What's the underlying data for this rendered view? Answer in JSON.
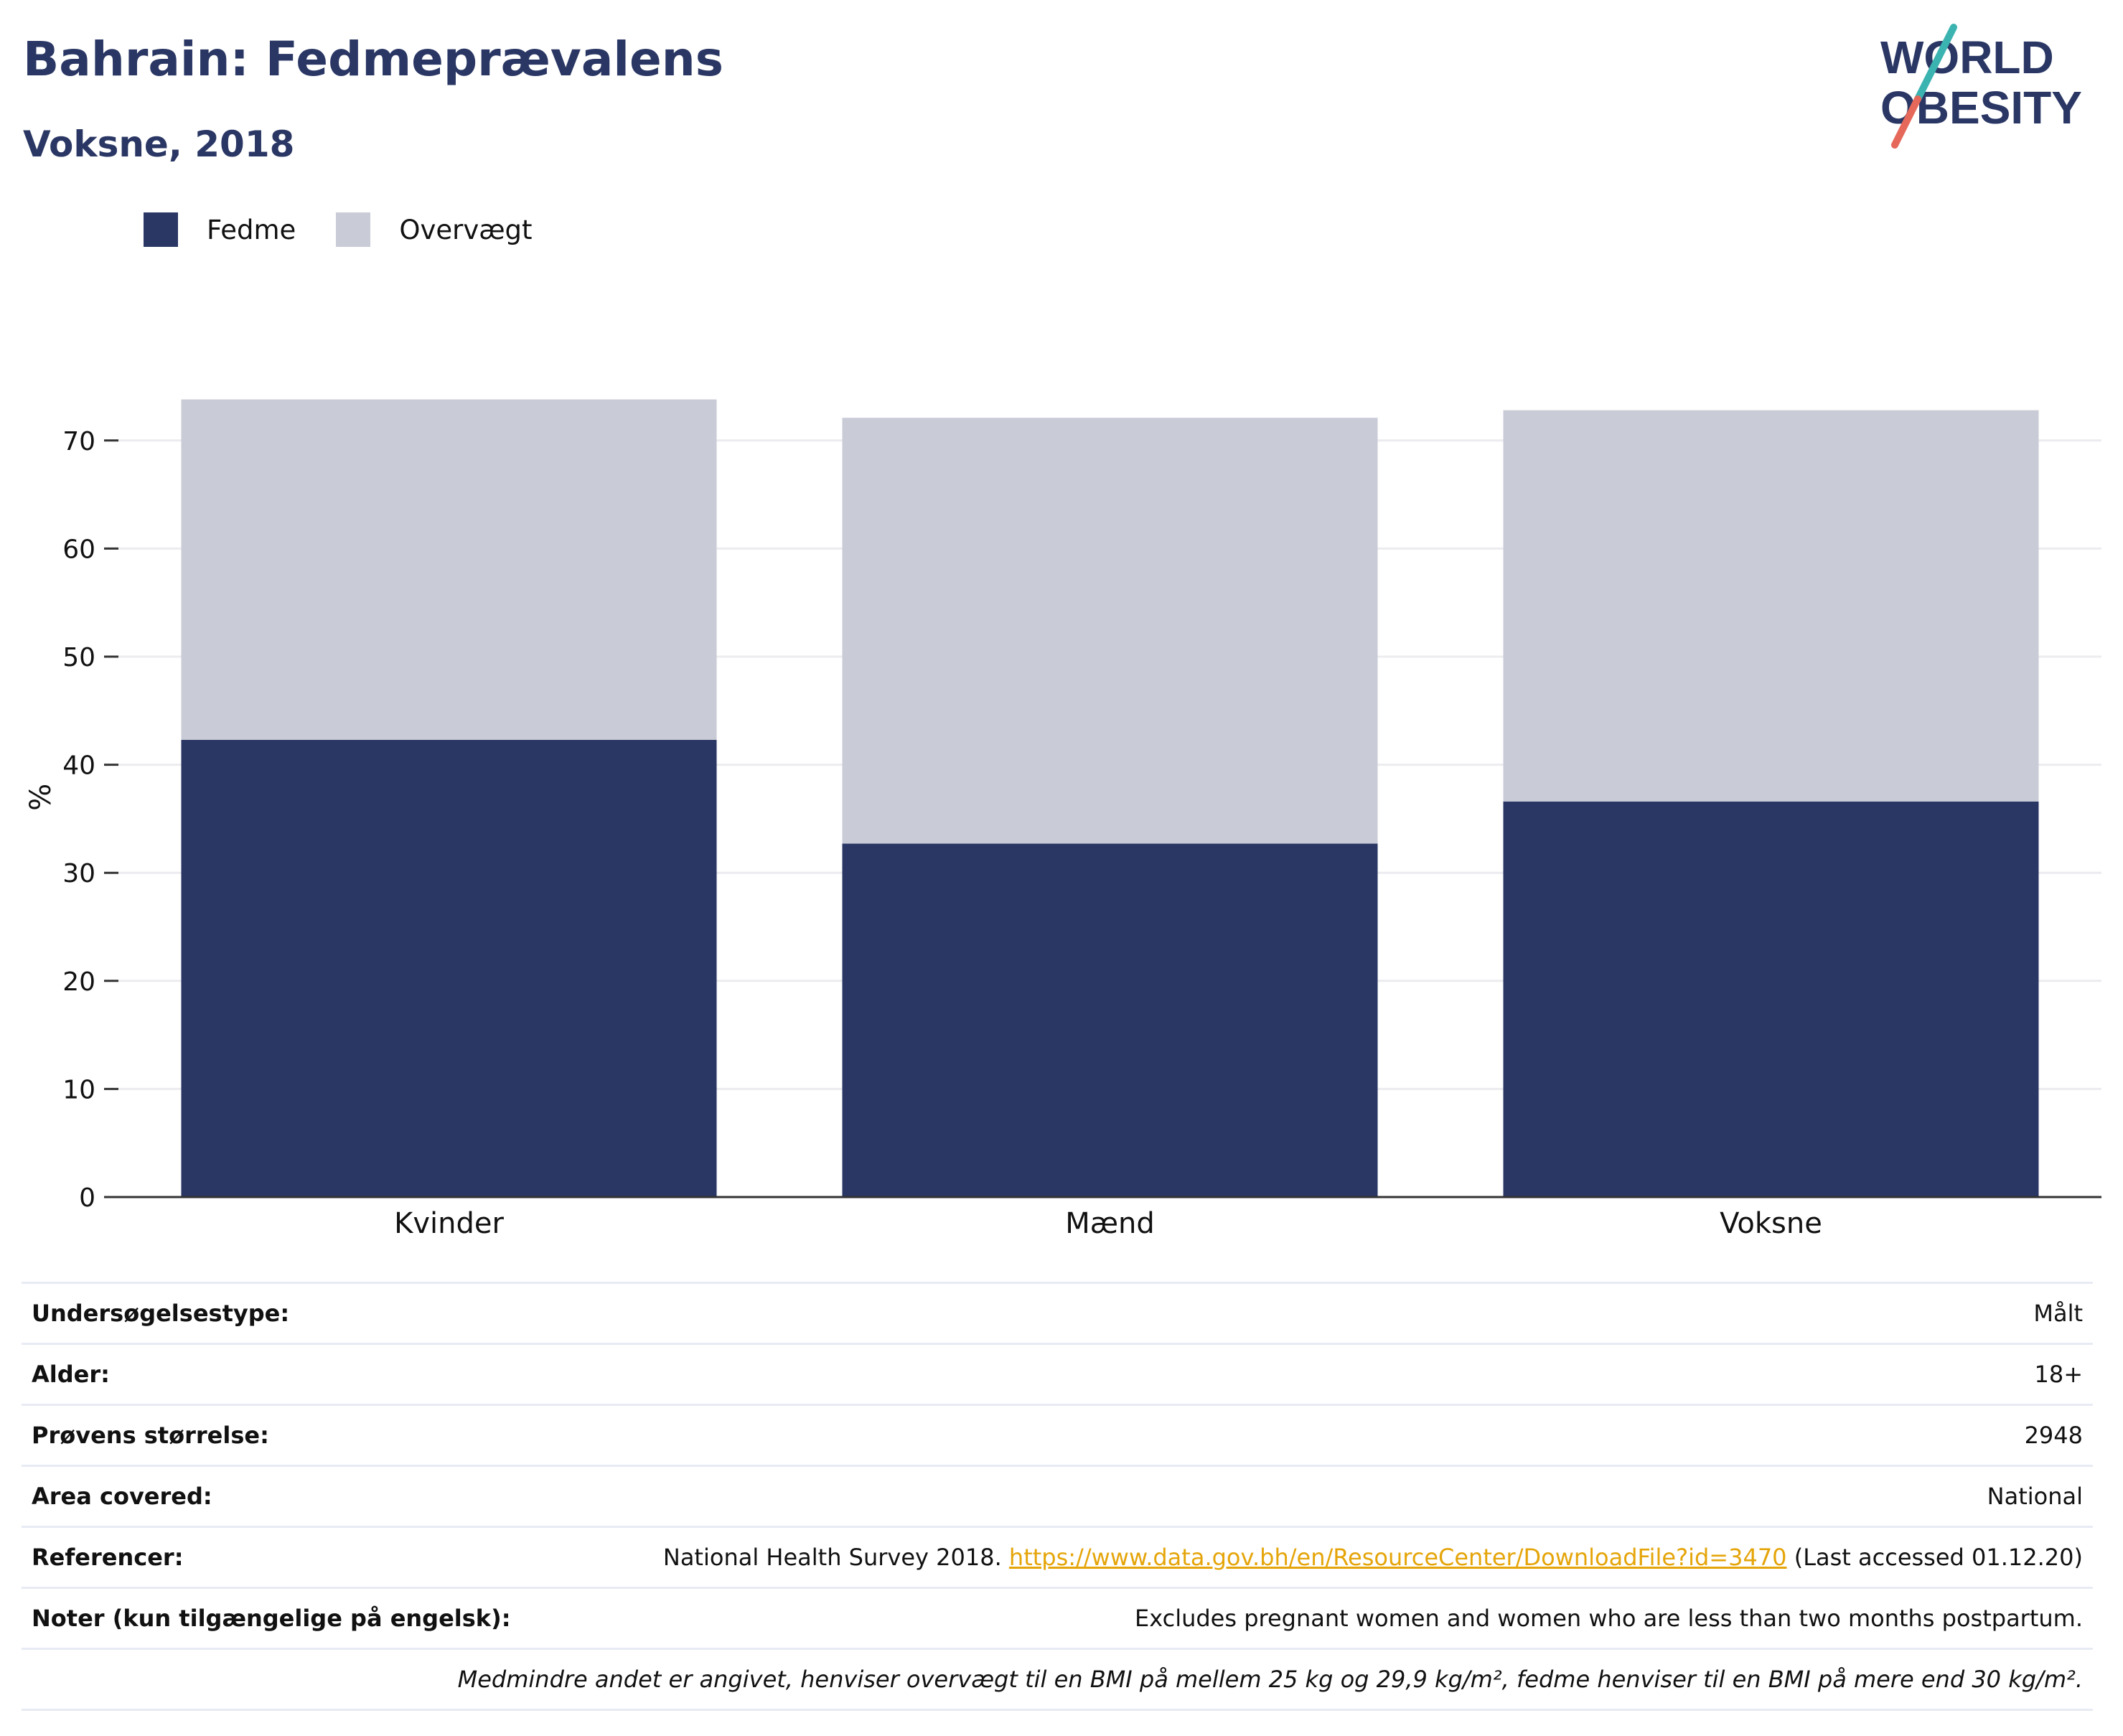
{
  "title": "Bahrain: Fedmeprævalens",
  "subtitle": "Voksne, 2018",
  "logo": {
    "line1": "WORLD",
    "line2": "OBESITY"
  },
  "legend": [
    {
      "label": "Fedme",
      "color": "#2a3764"
    },
    {
      "label": "Overvægt",
      "color": "#c9cbd7"
    }
  ],
  "chart_data": {
    "type": "bar",
    "stacked": true,
    "categories": [
      "Kvinder",
      "Mænd",
      "Voksne"
    ],
    "series": [
      {
        "name": "Fedme",
        "color": "#2a3764",
        "values": [
          42.3,
          32.7,
          36.6
        ]
      },
      {
        "name": "Overvægt",
        "color": "#c9cbd7",
        "values": [
          31.5,
          39.4,
          36.2
        ]
      }
    ],
    "ylabel": "%",
    "ylim": [
      0,
      74
    ],
    "yticks": [
      0,
      10,
      20,
      30,
      40,
      50,
      60,
      70
    ],
    "grid": true
  },
  "info": {
    "survey_type_label": "Undersøgelsestype:",
    "survey_type_value": "Målt",
    "age_label": "Alder:",
    "age_value": "18+",
    "sample_size_label": "Prøvens størrelse:",
    "sample_size_value": "2948",
    "area_label": "Area covered:",
    "area_value": "National",
    "references_label": "Referencer:",
    "references_prefix": "National Health Survey 2018. ",
    "references_link": "https://www.data.gov.bh/en/ResourceCenter/DownloadFile?id=3470",
    "references_suffix": " (Last accessed 01.12.20)",
    "notes_label": "Noter (kun tilgængelige på engelsk):",
    "notes_value": "Excludes pregnant women and women who are less than two months postpartum.",
    "footnote": "Medmindre andet er angivet, henviser overvægt til en BMI på mellem 25 kg og 29,9 kg/m², fedme henviser til en BMI på mere end 30 kg/m²."
  }
}
